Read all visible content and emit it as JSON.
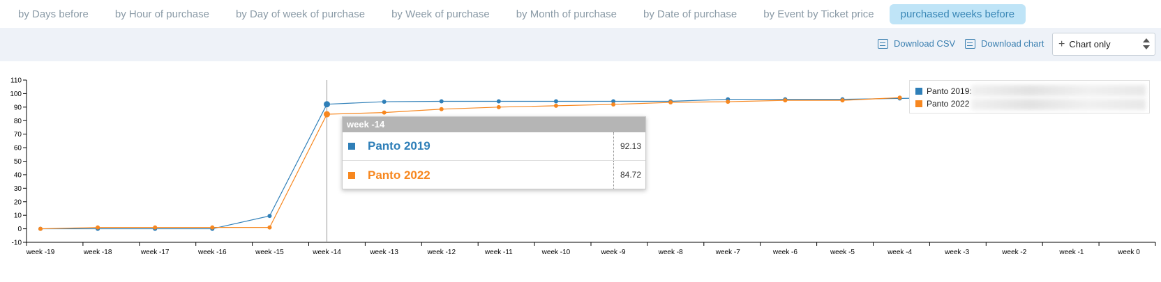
{
  "tabs": [
    {
      "label": "by Days before",
      "active": false
    },
    {
      "label": "by Hour of purchase",
      "active": false
    },
    {
      "label": "by Day of week of purchase",
      "active": false
    },
    {
      "label": "by Week of purchase",
      "active": false
    },
    {
      "label": "by Month of purchase",
      "active": false
    },
    {
      "label": "by Date of purchase",
      "active": false
    },
    {
      "label": "by Event by Ticket price",
      "active": false
    },
    {
      "label": "purchased weeks before",
      "active": true
    }
  ],
  "toolbar": {
    "download_csv": "Download CSV",
    "download_chart": "Download chart",
    "view_select": "Chart only"
  },
  "colors": {
    "panto2019": "#2f7fb8",
    "panto2022": "#f7871f"
  },
  "legend": {
    "items": [
      {
        "label": "Panto 2019:",
        "color": "#2f7fb8"
      },
      {
        "label": "Panto 2022",
        "color": "#f7871f"
      }
    ]
  },
  "tooltip": {
    "title": "week -14",
    "rows": [
      {
        "name": "Panto 2019",
        "value": "92.13",
        "color": "#2f7fb8"
      },
      {
        "name": "Panto 2022",
        "value": "84.72",
        "color": "#f7871f"
      }
    ]
  },
  "chart_data": {
    "type": "line",
    "categories": [
      "week -19",
      "week -18",
      "week -17",
      "week -16",
      "week -15",
      "week -14",
      "week -13",
      "week -12",
      "week -11",
      "week -10",
      "week -9",
      "week -8",
      "week -7",
      "week -6",
      "week -5",
      "week -4",
      "week -3",
      "week -2",
      "week -1",
      "week 0"
    ],
    "series": [
      {
        "name": "Panto 2019",
        "color": "#2f7fb8",
        "values": [
          0,
          0,
          0,
          0,
          9.5,
          92.13,
          94,
          94.3,
          94.3,
          94.3,
          94.3,
          94.3,
          95.8,
          95.8,
          95.8,
          96.4,
          97,
          null,
          null,
          null
        ]
      },
      {
        "name": "Panto 2022",
        "color": "#f7871f",
        "values": [
          0,
          1,
          1,
          1,
          1,
          84.72,
          86,
          88.5,
          90,
          91,
          92,
          93.5,
          94,
          95,
          95,
          97,
          null,
          null,
          null,
          null
        ]
      }
    ],
    "ylim": [
      -10,
      110
    ],
    "yticks": [
      -10,
      0,
      10,
      20,
      30,
      40,
      50,
      60,
      70,
      80,
      90,
      100,
      110
    ],
    "highlight_category": "week -14",
    "grid": false,
    "legend_position": "top-right"
  }
}
